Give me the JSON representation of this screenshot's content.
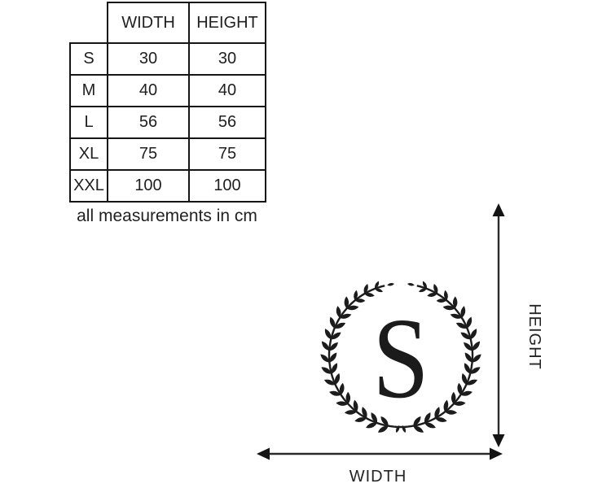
{
  "chart_data": {
    "type": "table",
    "columns": [
      "",
      "WIDTH",
      "HEIGHT"
    ],
    "rows": [
      [
        "S",
        "30",
        "30"
      ],
      [
        "M",
        "40",
        "40"
      ],
      [
        "L",
        "56",
        "56"
      ],
      [
        "XL",
        "75",
        "75"
      ],
      [
        "XXL",
        "100",
        "100"
      ]
    ],
    "note": "all measurements in cm",
    "units": "cm"
  },
  "monogram": {
    "letter": "S"
  },
  "dimensions": {
    "height_label": "HEIGHT",
    "width_label": "WIDTH"
  },
  "colors": {
    "ink": "#1c1c1c",
    "background": "#ffffff"
  }
}
